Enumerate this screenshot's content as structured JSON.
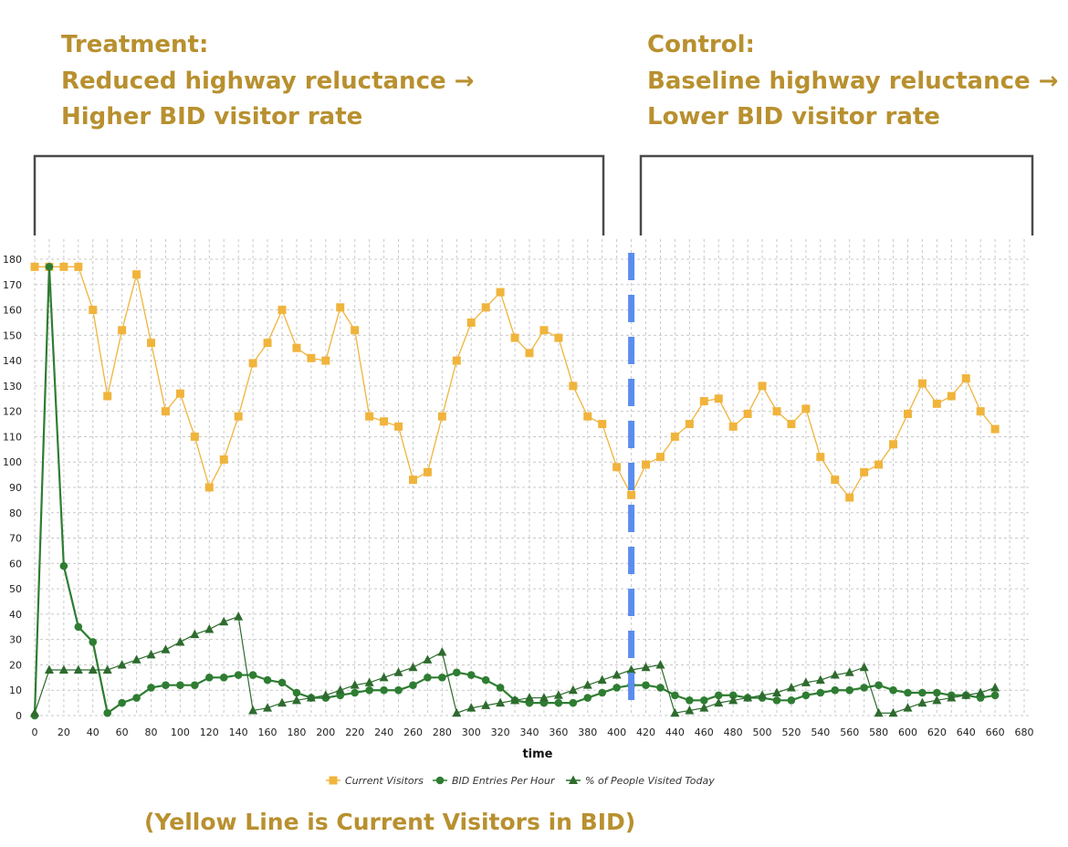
{
  "treatment": {
    "title": "Treatment:",
    "line1": "Reduced highway reluctance →",
    "line2": "Higher BID visitor rate"
  },
  "control": {
    "title": "Control:",
    "line1": "Baseline highway reluctance →",
    "line2": "Lower BID visitor rate"
  },
  "note": "(Yellow Line is Current Visitors in BID)",
  "colors": {
    "header": "#b8902f",
    "current_visitors": "#f0b43c",
    "bid_entries": "#2e7d32",
    "pct_people": "#2e6b2e",
    "divider": "#5b8def",
    "bracket": "#4a4a4a"
  },
  "chart_data": {
    "type": "line",
    "title": "",
    "xlabel": "time",
    "ylabel": "",
    "xlim": [
      0,
      680
    ],
    "ylim": [
      0,
      180
    ],
    "xticks": [
      0,
      20,
      40,
      60,
      80,
      100,
      120,
      140,
      160,
      180,
      200,
      220,
      240,
      260,
      280,
      300,
      320,
      340,
      360,
      380,
      400,
      420,
      440,
      460,
      480,
      500,
      520,
      540,
      560,
      580,
      600,
      620,
      640,
      660,
      680
    ],
    "yticks": [
      0,
      10,
      20,
      30,
      40,
      50,
      60,
      70,
      80,
      90,
      100,
      110,
      120,
      130,
      140,
      150,
      160,
      170,
      180
    ],
    "divider_x": 410,
    "legend_position": "bottom",
    "series": [
      {
        "name": "Current Visitors",
        "marker": "square",
        "x": [
          0,
          10,
          20,
          30,
          40,
          50,
          60,
          70,
          80,
          90,
          100,
          110,
          120,
          130,
          140,
          150,
          160,
          170,
          180,
          190,
          200,
          210,
          220,
          230,
          240,
          250,
          260,
          270,
          280,
          290,
          300,
          310,
          320,
          330,
          340,
          350,
          360,
          370,
          380,
          390,
          400,
          410,
          420,
          430,
          440,
          450,
          460,
          470,
          480,
          490,
          500,
          510,
          520,
          530,
          540,
          550,
          560,
          570,
          580,
          590,
          600,
          610,
          620,
          630,
          640,
          650,
          660
        ],
        "values": [
          177,
          177,
          177,
          177,
          160,
          126,
          152,
          174,
          147,
          120,
          127,
          110,
          90,
          101,
          118,
          139,
          147,
          160,
          145,
          141,
          140,
          161,
          152,
          118,
          116,
          114,
          93,
          96,
          118,
          140,
          155,
          161,
          167,
          149,
          143,
          152,
          149,
          130,
          118,
          115,
          98,
          87,
          99,
          102,
          110,
          115,
          124,
          125,
          114,
          119,
          130,
          120,
          115,
          121,
          102,
          93,
          86,
          96,
          99,
          107,
          119,
          131,
          123,
          126,
          133,
          120,
          113
        ]
      },
      {
        "name": "BID Entries Per Hour",
        "marker": "circle",
        "x": [
          0,
          10,
          20,
          30,
          40,
          50,
          60,
          70,
          80,
          90,
          100,
          110,
          120,
          130,
          140,
          150,
          160,
          170,
          180,
          190,
          200,
          210,
          220,
          230,
          240,
          250,
          260,
          270,
          280,
          290,
          300,
          310,
          320,
          330,
          340,
          350,
          360,
          370,
          380,
          390,
          400,
          410,
          420,
          430,
          440,
          450,
          460,
          470,
          480,
          490,
          500,
          510,
          520,
          530,
          540,
          550,
          560,
          570,
          580,
          590,
          600,
          610,
          620,
          630,
          640,
          650,
          660
        ],
        "values": [
          0,
          177,
          59,
          35,
          29,
          1,
          5,
          7,
          11,
          12,
          12,
          12,
          15,
          15,
          16,
          16,
          14,
          13,
          9,
          7,
          7,
          8,
          9,
          10,
          10,
          10,
          12,
          15,
          15,
          17,
          16,
          14,
          11,
          6,
          5,
          5,
          5,
          5,
          7,
          9,
          11,
          12,
          12,
          11,
          8,
          6,
          6,
          8,
          8,
          7,
          7,
          6,
          6,
          8,
          9,
          10,
          10,
          11,
          12,
          10,
          9,
          9,
          9,
          8,
          8,
          7,
          8
        ]
      },
      {
        "name": "% of People Visited Today",
        "marker": "triangle",
        "x": [
          0,
          10,
          20,
          30,
          40,
          50,
          60,
          70,
          80,
          90,
          100,
          110,
          120,
          130,
          140,
          150,
          160,
          170,
          180,
          190,
          200,
          210,
          220,
          230,
          240,
          250,
          260,
          270,
          280,
          290,
          300,
          310,
          320,
          330,
          340,
          350,
          360,
          370,
          380,
          390,
          400,
          410,
          420,
          430,
          440,
          450,
          460,
          470,
          480,
          490,
          500,
          510,
          520,
          530,
          540,
          550,
          560,
          570,
          580,
          590,
          600,
          610,
          620,
          630,
          640,
          650,
          660
        ],
        "values": [
          1,
          18,
          18,
          18,
          18,
          18,
          20,
          22,
          24,
          26,
          29,
          32,
          34,
          37,
          39,
          2,
          3,
          5,
          6,
          7,
          8,
          10,
          12,
          13,
          15,
          17,
          19,
          22,
          25,
          1,
          3,
          4,
          5,
          6,
          7,
          7,
          8,
          10,
          12,
          14,
          16,
          18,
          19,
          20,
          1,
          2,
          3,
          5,
          6,
          7,
          8,
          9,
          11,
          13,
          14,
          16,
          17,
          19,
          1,
          1,
          3,
          5,
          6,
          7,
          8,
          9,
          11
        ]
      }
    ]
  }
}
